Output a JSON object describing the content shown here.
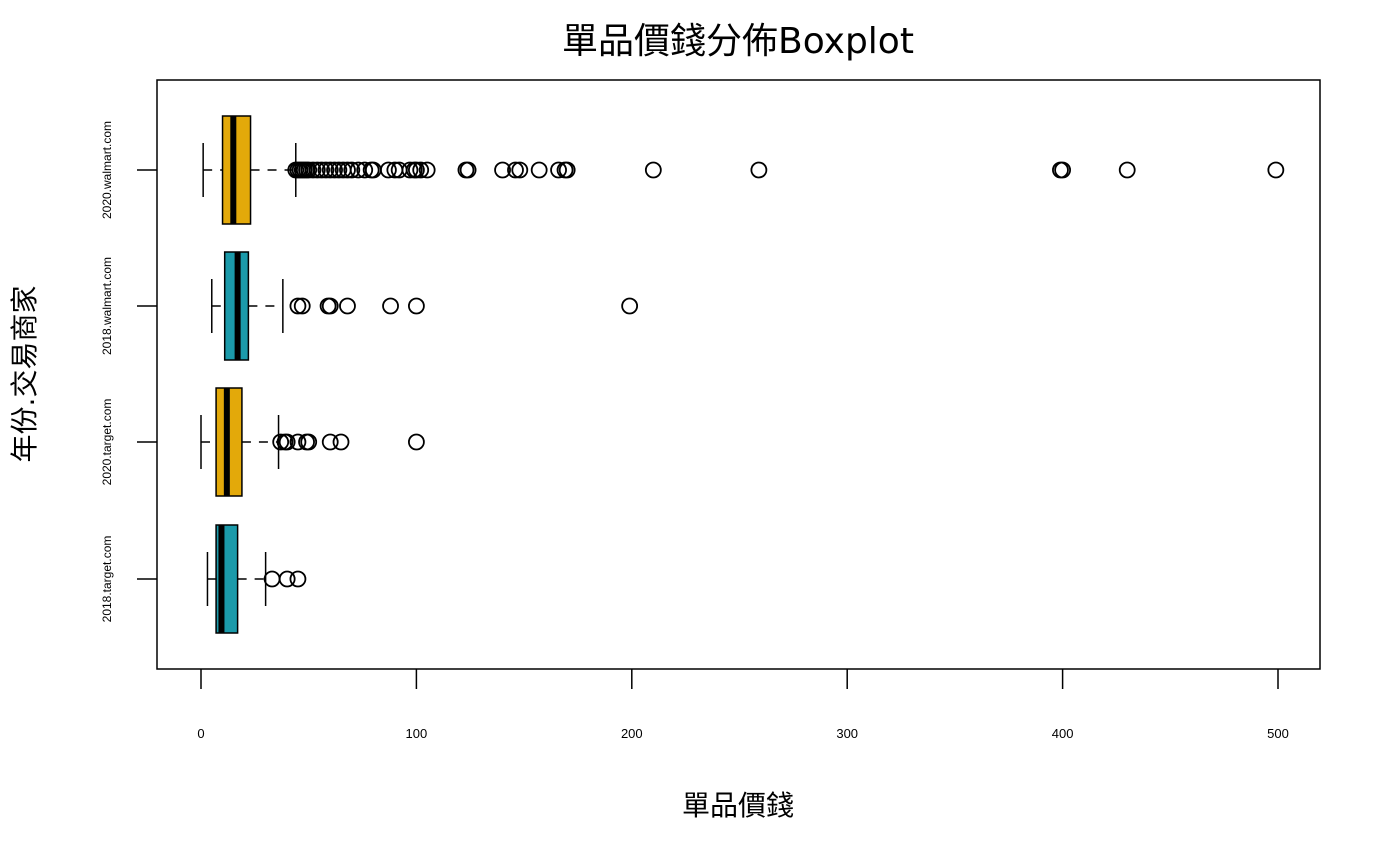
{
  "chart_data": {
    "type": "boxplot",
    "orientation": "horizontal",
    "title": "單品價錢分佈Boxplot",
    "xlabel": "單品價錢",
    "ylabel": "年份.交易商家",
    "xlim": [
      -20,
      520
    ],
    "xticks": [
      0,
      100,
      200,
      300,
      400,
      500
    ],
    "xtick_labels": [
      "0",
      "100",
      "200",
      "300",
      "400",
      "500"
    ],
    "colors": {
      "orange": "#E3A90A",
      "teal": "#1B9AAA",
      "stroke": "#000000",
      "background": "#ffffff"
    },
    "boxes": [
      {
        "name": "2018.target.com",
        "color": "#1B9AAA",
        "whisker_low": 3,
        "q1": 7,
        "median": 9.5,
        "q3": 17,
        "whisker_high": 30,
        "outliers": [
          33,
          40,
          45
        ]
      },
      {
        "name": "2020.target.com",
        "color": "#E3A90A",
        "whisker_low": 0,
        "q1": 7,
        "median": 12,
        "q3": 19,
        "whisker_high": 36,
        "outliers": [
          37,
          39,
          40,
          45,
          49,
          50,
          60,
          65,
          100
        ]
      },
      {
        "name": "2018.walmart.com",
        "color": "#1B9AAA",
        "whisker_low": 5,
        "q1": 11,
        "median": 17,
        "q3": 22,
        "whisker_high": 38,
        "outliers": [
          45,
          47,
          59,
          60,
          68,
          88,
          100,
          199
        ]
      },
      {
        "name": "2020.walmart.com",
        "color": "#E3A90A",
        "whisker_low": 1,
        "q1": 10,
        "median": 15,
        "q3": 23,
        "whisker_high": 44,
        "outliers": [
          44,
          45,
          46,
          47,
          48,
          49,
          50,
          52,
          54,
          56,
          58,
          60,
          62,
          64,
          66,
          68,
          70,
          73,
          76,
          79,
          80,
          87,
          90,
          92,
          97,
          99,
          100,
          102,
          105,
          123,
          124,
          140,
          146,
          148,
          157,
          166,
          169,
          170,
          210,
          259,
          399,
          400,
          430,
          499
        ]
      }
    ]
  }
}
